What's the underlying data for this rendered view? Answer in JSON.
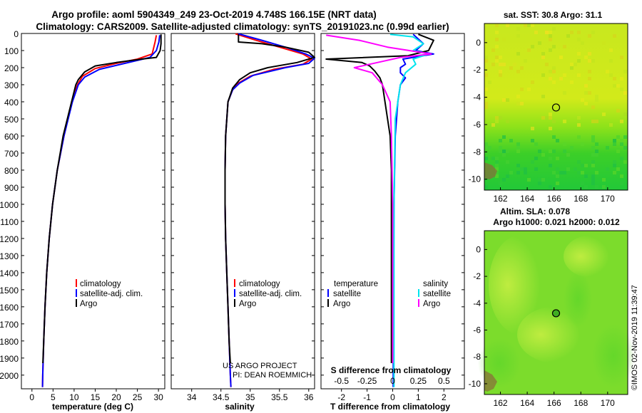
{
  "header": {
    "line1": "Argo profile: aoml 5904349_249 23-Oct-2019 4.748S 166.15E (NRT data)",
    "line2": "Climatology: CARS2009. Satellite-adjusted climatology: synTS_20191023.nc (0.99d earlier)"
  },
  "colors": {
    "climatology": "#ff0000",
    "satellite_adj": "#0000ff",
    "argo": "#000000",
    "salinity_satellite": "#00e5ee",
    "salinity_argo": "#ff00ff"
  },
  "depth_ticks": [
    0,
    100,
    200,
    300,
    400,
    500,
    600,
    700,
    800,
    900,
    1000,
    1100,
    1200,
    1300,
    1400,
    1500,
    1600,
    1700,
    1800,
    1900,
    2000
  ],
  "chart_data": [
    {
      "type": "line",
      "id": "temperature",
      "xlabel": "temperature (deg C)",
      "xlim": [
        -2.5,
        31.5
      ],
      "ylim": [
        0,
        2080
      ],
      "xticks": [
        0,
        5,
        10,
        15,
        20,
        25,
        30
      ],
      "legend": [
        "climatology",
        "satellite-adj. clim.",
        "Argo"
      ],
      "series": [
        {
          "name": "climatology",
          "color": "#ff0000",
          "points": [
            [
              29.5,
              10
            ],
            [
              29.2,
              50
            ],
            [
              28.5,
              120
            ],
            [
              25,
              150
            ],
            [
              20,
              175
            ],
            [
              15,
              205
            ],
            [
              12,
              250
            ],
            [
              10.8,
              300
            ],
            [
              9.5,
              400
            ],
            [
              7.6,
              600
            ],
            [
              6,
              800
            ],
            [
              4.9,
              1000
            ],
            [
              4.1,
              1200
            ],
            [
              3.5,
              1400
            ],
            [
              3.1,
              1600
            ],
            [
              2.8,
              1800
            ],
            [
              2.55,
              2000
            ],
            [
              2.5,
              2070
            ]
          ]
        },
        {
          "name": "satellite-adj. clim.",
          "color": "#0000ff",
          "points": [
            [
              30.3,
              10
            ],
            [
              30.1,
              50
            ],
            [
              29.5,
              100
            ],
            [
              28,
              140
            ],
            [
              22,
              175
            ],
            [
              16,
              210
            ],
            [
              12.5,
              255
            ],
            [
              11,
              300
            ],
            [
              9.6,
              400
            ],
            [
              7.6,
              600
            ],
            [
              6,
              800
            ],
            [
              4.9,
              1000
            ],
            [
              4.1,
              1200
            ],
            [
              3.5,
              1400
            ],
            [
              3.1,
              1600
            ],
            [
              2.8,
              1800
            ],
            [
              2.55,
              2000
            ],
            [
              2.5,
              2070
            ]
          ]
        },
        {
          "name": "Argo",
          "color": "#000000",
          "points": [
            [
              30.6,
              5
            ],
            [
              30.6,
              60
            ],
            [
              30.4,
              100
            ],
            [
              29.5,
              140
            ],
            [
              26,
              150
            ],
            [
              20,
              170
            ],
            [
              15,
              190
            ],
            [
              12.5,
              225
            ],
            [
              11,
              270
            ],
            [
              10.4,
              300
            ],
            [
              9.6,
              380
            ],
            [
              8.4,
              500
            ],
            [
              7.4,
              600
            ],
            [
              6,
              800
            ],
            [
              4.9,
              1000
            ],
            [
              4.1,
              1200
            ],
            [
              3.5,
              1400
            ],
            [
              3.1,
              1600
            ],
            [
              2.8,
              1800
            ],
            [
              2.6,
              1930
            ]
          ]
        }
      ]
    },
    {
      "type": "line",
      "id": "salinity",
      "xlabel": "salinity",
      "xlim": [
        33.65,
        36.1
      ],
      "ylim": [
        0,
        2080
      ],
      "xticks": [
        34,
        34.5,
        35,
        35.5,
        36
      ],
      "xticklabels": [
        "34",
        "34.5",
        "35",
        "35.5",
        "36"
      ],
      "legend": [
        "climatology",
        "satellite-adj. clim.",
        "Argo"
      ],
      "annotation": [
        "US ARGO PROJECT",
        "PI: DEAN ROEMMICH"
      ],
      "series": [
        {
          "name": "climatology",
          "color": "#ff0000",
          "points": [
            [
              34.75,
              2
            ],
            [
              35.1,
              40
            ],
            [
              35.5,
              80
            ],
            [
              35.9,
              120
            ],
            [
              36.05,
              150
            ],
            [
              35.9,
              180
            ],
            [
              35.4,
              210
            ],
            [
              35,
              250
            ],
            [
              34.8,
              290
            ],
            [
              34.7,
              330
            ],
            [
              34.62,
              400
            ],
            [
              34.58,
              600
            ],
            [
              34.57,
              800
            ],
            [
              34.57,
              1000
            ],
            [
              34.58,
              1200
            ],
            [
              34.6,
              1400
            ],
            [
              34.62,
              1600
            ],
            [
              34.64,
              1800
            ],
            [
              34.66,
              2000
            ],
            [
              34.67,
              2070
            ]
          ]
        },
        {
          "name": "satellite-adj. clim.",
          "color": "#0000ff",
          "points": [
            [
              34.8,
              2
            ],
            [
              35.2,
              40
            ],
            [
              35.6,
              80
            ],
            [
              35.95,
              120
            ],
            [
              36.1,
              145
            ],
            [
              36,
              175
            ],
            [
              35.6,
              200
            ],
            [
              35.05,
              245
            ],
            [
              34.82,
              290
            ],
            [
              34.7,
              330
            ],
            [
              34.62,
              400
            ],
            [
              34.58,
              600
            ],
            [
              34.57,
              800
            ],
            [
              34.57,
              1000
            ],
            [
              34.58,
              1200
            ],
            [
              34.6,
              1400
            ],
            [
              34.62,
              1600
            ],
            [
              34.64,
              1800
            ],
            [
              34.66,
              2000
            ],
            [
              34.67,
              2070
            ]
          ]
        },
        {
          "name": "Argo",
          "color": "#000000",
          "points": [
            [
              34.8,
              5
            ],
            [
              34.8,
              50
            ],
            [
              35.2,
              60
            ],
            [
              35.6,
              80
            ],
            [
              36,
              110
            ],
            [
              36.1,
              140
            ],
            [
              35.8,
              170
            ],
            [
              35.3,
              200
            ],
            [
              35,
              230
            ],
            [
              34.82,
              270
            ],
            [
              34.7,
              320
            ],
            [
              34.62,
              400
            ],
            [
              34.58,
              600
            ],
            [
              34.57,
              800
            ],
            [
              34.57,
              1000
            ],
            [
              34.58,
              1200
            ],
            [
              34.6,
              1400
            ],
            [
              34.62,
              1600
            ],
            [
              34.64,
              1800
            ],
            [
              34.66,
              1930
            ]
          ]
        }
      ]
    },
    {
      "type": "line",
      "id": "difference",
      "xlabel": "T difference from climatology",
      "xlabel_top": "S difference from climatology",
      "xlim": [
        -2.8,
        2.8
      ],
      "ylim": [
        0,
        2080
      ],
      "xticks": [
        -2,
        -1,
        0,
        1,
        2
      ],
      "top_ticks": [
        -0.5,
        -0.25,
        0,
        0.25,
        0.5
      ],
      "top_ticklabels": [
        "-0.5",
        "-0.25",
        "0",
        "0.25",
        "0.5"
      ],
      "legend_left_title": "temperature",
      "legend_right_title": "salinity",
      "legend_left": [
        "satellite",
        "Argo"
      ],
      "legend_right": [
        "satellite",
        "Argo"
      ],
      "series": [
        {
          "name": "T satellite",
          "color": "#0000ff",
          "points": [
            [
              0.8,
              5
            ],
            [
              1.2,
              60
            ],
            [
              0.9,
              100
            ],
            [
              1.6,
              120
            ],
            [
              0.4,
              150
            ],
            [
              0.5,
              180
            ],
            [
              0.3,
              200
            ],
            [
              0.3,
              230
            ],
            [
              0.5,
              260
            ],
            [
              0.3,
              300
            ],
            [
              0.2,
              400
            ],
            [
              0.1,
              600
            ],
            [
              0.05,
              1000
            ],
            [
              0.02,
              2070
            ]
          ]
        },
        {
          "name": "T Argo",
          "color": "#000000",
          "points": [
            [
              1,
              5
            ],
            [
              1.6,
              40
            ],
            [
              1.4,
              100
            ],
            [
              0.6,
              130
            ],
            [
              -2.6,
              150
            ],
            [
              -1.2,
              170
            ],
            [
              -0.9,
              190
            ],
            [
              -0.7,
              220
            ],
            [
              -0.5,
              260
            ],
            [
              -0.4,
              300
            ],
            [
              -0.3,
              400
            ],
            [
              -0.2,
              500
            ],
            [
              -0.1,
              600
            ],
            [
              -0.05,
              800
            ],
            [
              -0.05,
              1000
            ],
            [
              -0.05,
              1500
            ],
            [
              -0.05,
              1930
            ]
          ]
        },
        {
          "name": "S satellite",
          "color": "#00e5ee",
          "points": [
            [
              -0.1,
              5
            ],
            [
              0.8,
              20
            ],
            [
              1.2,
              60
            ],
            [
              0.8,
              100
            ],
            [
              1.4,
              120
            ],
            [
              0.8,
              150
            ],
            [
              0.9,
              180
            ],
            [
              0.5,
              230
            ],
            [
              0.3,
              300
            ],
            [
              0.1,
              500
            ],
            [
              0.05,
              1000
            ],
            [
              0.05,
              1500
            ],
            [
              0.05,
              2070
            ]
          ]
        },
        {
          "name": "S Argo",
          "color": "#ff00ff",
          "points": [
            [
              -2.6,
              10
            ],
            [
              -1.3,
              40
            ],
            [
              -0.2,
              80
            ],
            [
              1.5,
              120
            ],
            [
              0.3,
              140
            ],
            [
              -0.6,
              170
            ],
            [
              -1.5,
              200
            ],
            [
              -0.8,
              230
            ],
            [
              -0.4,
              300
            ],
            [
              -0.1,
              400
            ],
            [
              -0.05,
              600
            ],
            [
              0,
              1000
            ],
            [
              0,
              1500
            ],
            [
              0,
              1930
            ]
          ]
        }
      ]
    }
  ],
  "maps": [
    {
      "id": "sst-map",
      "title": "sat. SST: 30.8 Argo: 31.1",
      "xticks": [
        162,
        164,
        166,
        168,
        170
      ],
      "yticks": [
        0,
        -2,
        -4,
        -6,
        -8,
        -10
      ],
      "xlim": [
        160.8,
        171.5
      ],
      "ylim": [
        -10.8,
        1.4
      ],
      "marker": [
        166.15,
        -4.75
      ]
    },
    {
      "id": "sla-map",
      "title_line1": "Altim. SLA: 0.078",
      "title_line2": "Argo h1000: 0.021 h2000: 0.012",
      "xticks": [
        162,
        164,
        166,
        168,
        170
      ],
      "yticks": [
        0,
        -2,
        -4,
        -6,
        -8,
        -10
      ],
      "xlim": [
        160.8,
        171.5
      ],
      "ylim": [
        -10.8,
        1.4
      ],
      "marker": [
        166.15,
        -4.75
      ]
    }
  ],
  "credit": "©IMOS 02-Nov-2019 11:39:47"
}
